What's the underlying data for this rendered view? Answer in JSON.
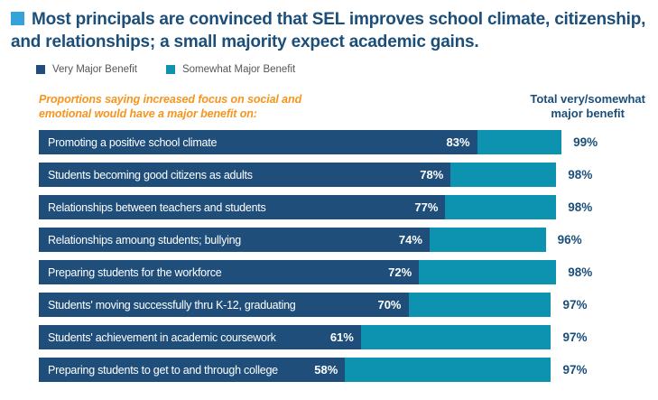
{
  "colors": {
    "title_text": "#1B4E79",
    "title_bullet": "#35A3DA",
    "very_major": "#1E4E79",
    "somewhat_major": "#0D93AF",
    "subtitle_orange": "#F7941E",
    "legend_text": "#55565A"
  },
  "legend": [
    {
      "label": "Very Major Benefit",
      "color": "#1E4E79"
    },
    {
      "label": "Somewhat Major Benefit",
      "color": "#0D93AF"
    }
  ],
  "subtitle": {
    "part1": "Proportions saying increased focus on social and emotional would have a ",
    "bold": "major benefit",
    "part2": " on:"
  },
  "totals_header": {
    "line1": "Total very/somewhat",
    "line2": "major benefit"
  },
  "chart_data": {
    "type": "bar",
    "orientation": "horizontal",
    "stacked": true,
    "title": "Most principals are convinced that SEL improves school climate, citizenship, and relationships; a small majority expect academic gains.",
    "categories": [
      "Promoting a positive school climate",
      "Students becoming good citizens as adults",
      "Relationships between teachers and students",
      "Relationships amoung students; bullying",
      "Preparing students for the workforce",
      "Students' moving successfully thru K-12, graduating",
      "Students' achievement in academic coursework",
      "Preparing students to get to and through college"
    ],
    "series": [
      {
        "name": "Very Major Benefit",
        "color": "#1E4E79",
        "values": [
          83,
          78,
          77,
          74,
          72,
          70,
          61,
          58
        ]
      },
      {
        "name": "Somewhat Major Benefit",
        "color": "#0D93AF",
        "values": [
          16,
          20,
          21,
          22,
          26,
          27,
          36,
          39
        ]
      }
    ],
    "totals": [
      99,
      98,
      98,
      96,
      98,
      97,
      97,
      97
    ],
    "unit": "%",
    "xlim": [
      0,
      100
    ],
    "value_labels": "inside-end",
    "totals_labels": "right-of-bar",
    "legend_position": "top-left",
    "grid": false
  }
}
